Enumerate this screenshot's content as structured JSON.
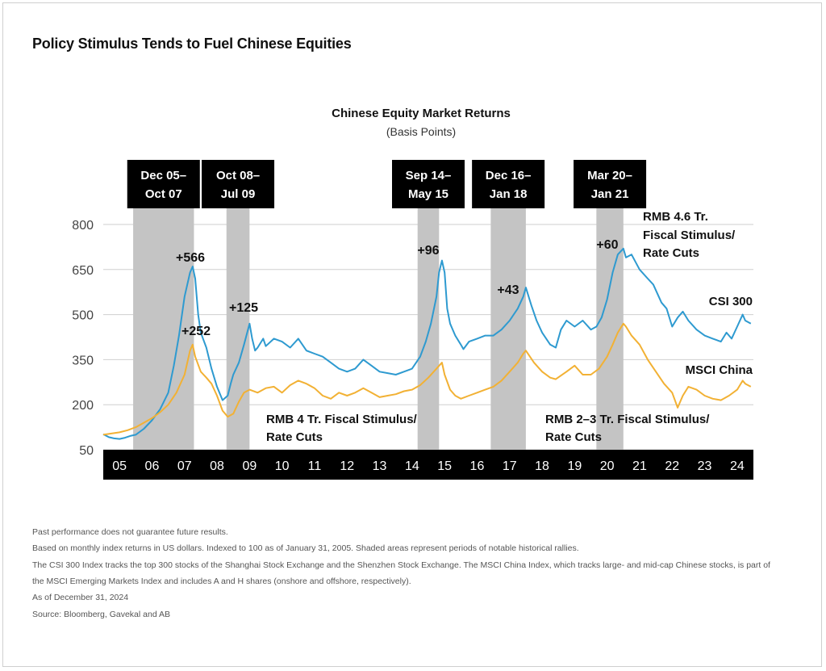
{
  "page_title": "Policy Stimulus Tends to Fuel Chinese Equities",
  "chart_data": {
    "type": "line",
    "title": "Chinese Equity Market Returns",
    "subtitle": "(Basis Points)",
    "xlabel": "",
    "ylabel": "",
    "xlim": [
      2005.0,
      2025.0
    ],
    "ylim": [
      50,
      800
    ],
    "y_ticks": [
      50,
      200,
      350,
      500,
      650,
      800
    ],
    "x_ticks": [
      {
        "label": "05",
        "x": 2005.5
      },
      {
        "label": "06",
        "x": 2006.5
      },
      {
        "label": "07",
        "x": 2007.5
      },
      {
        "label": "08",
        "x": 2008.5
      },
      {
        "label": "09",
        "x": 2009.5
      },
      {
        "label": "10",
        "x": 2010.5
      },
      {
        "label": "11",
        "x": 2011.5
      },
      {
        "label": "12",
        "x": 2012.5
      },
      {
        "label": "13",
        "x": 2013.5
      },
      {
        "label": "14",
        "x": 2014.5
      },
      {
        "label": "15",
        "x": 2015.5
      },
      {
        "label": "16",
        "x": 2016.5
      },
      {
        "label": "17",
        "x": 2017.5
      },
      {
        "label": "18",
        "x": 2018.5
      },
      {
        "label": "19",
        "x": 2019.5
      },
      {
        "label": "20",
        "x": 2020.5
      },
      {
        "label": "21",
        "x": 2021.5
      },
      {
        "label": "22",
        "x": 2022.5
      },
      {
        "label": "23",
        "x": 2023.5
      },
      {
        "label": "24",
        "x": 2024.5
      }
    ],
    "grid": "horizontal",
    "series": [
      {
        "name": "CSI 300",
        "color": "#2e9ad0",
        "x": [
          2005.0,
          2005.17,
          2005.33,
          2005.5,
          2005.67,
          2005.83,
          2006.0,
          2006.25,
          2006.5,
          2006.75,
          2007.0,
          2007.17,
          2007.33,
          2007.5,
          2007.67,
          2007.75,
          2007.83,
          2007.92,
          2008.0,
          2008.17,
          2008.33,
          2008.5,
          2008.67,
          2008.83,
          2008.92,
          2009.0,
          2009.17,
          2009.33,
          2009.5,
          2009.58,
          2009.67,
          2009.75,
          2009.92,
          2010.0,
          2010.25,
          2010.5,
          2010.75,
          2011.0,
          2011.25,
          2011.5,
          2011.75,
          2012.0,
          2012.25,
          2012.5,
          2012.75,
          2013.0,
          2013.25,
          2013.5,
          2013.75,
          2014.0,
          2014.25,
          2014.5,
          2014.75,
          2014.92,
          2015.08,
          2015.25,
          2015.33,
          2015.42,
          2015.5,
          2015.58,
          2015.67,
          2015.83,
          2016.0,
          2016.08,
          2016.25,
          2016.5,
          2016.75,
          2017.0,
          2017.25,
          2017.5,
          2017.75,
          2017.92,
          2018.0,
          2018.17,
          2018.33,
          2018.5,
          2018.75,
          2018.92,
          2019.08,
          2019.25,
          2019.5,
          2019.75,
          2020.0,
          2020.17,
          2020.33,
          2020.5,
          2020.67,
          2020.83,
          2021.0,
          2021.08,
          2021.25,
          2021.5,
          2021.75,
          2021.92,
          2022.17,
          2022.33,
          2022.5,
          2022.67,
          2022.83,
          2023.0,
          2023.25,
          2023.5,
          2023.75,
          2024.0,
          2024.17,
          2024.33,
          2024.5,
          2024.67,
          2024.75,
          2024.92
        ],
        "values": [
          102,
          92,
          88,
          86,
          90,
          96,
          100,
          120,
          148,
          185,
          240,
          330,
          430,
          560,
          640,
          660,
          620,
          500,
          440,
          390,
          320,
          260,
          215,
          230,
          270,
          300,
          340,
          400,
          470,
          420,
          380,
          390,
          420,
          395,
          420,
          410,
          390,
          420,
          380,
          370,
          360,
          340,
          320,
          310,
          320,
          350,
          330,
          310,
          305,
          300,
          310,
          320,
          360,
          410,
          470,
          560,
          640,
          680,
          640,
          520,
          470,
          430,
          400,
          385,
          410,
          420,
          430,
          430,
          450,
          480,
          520,
          560,
          590,
          530,
          480,
          440,
          400,
          390,
          450,
          480,
          460,
          480,
          450,
          460,
          490,
          550,
          640,
          700,
          720,
          690,
          700,
          650,
          620,
          600,
          540,
          520,
          460,
          490,
          510,
          480,
          450,
          430,
          420,
          410,
          440,
          420,
          460,
          500,
          480,
          470
        ]
      },
      {
        "name": "MSCI China",
        "color": "#f2b134",
        "x": [
          2005.0,
          2005.25,
          2005.5,
          2005.75,
          2006.0,
          2006.25,
          2006.5,
          2006.75,
          2007.0,
          2007.25,
          2007.5,
          2007.67,
          2007.75,
          2007.83,
          2008.0,
          2008.17,
          2008.33,
          2008.5,
          2008.67,
          2008.83,
          2009.0,
          2009.17,
          2009.33,
          2009.5,
          2009.75,
          2010.0,
          2010.25,
          2010.5,
          2010.75,
          2011.0,
          2011.25,
          2011.5,
          2011.75,
          2012.0,
          2012.25,
          2012.5,
          2012.75,
          2013.0,
          2013.25,
          2013.5,
          2013.75,
          2014.0,
          2014.25,
          2014.5,
          2014.75,
          2015.0,
          2015.25,
          2015.42,
          2015.5,
          2015.67,
          2015.83,
          2016.0,
          2016.25,
          2016.5,
          2016.75,
          2017.0,
          2017.25,
          2017.5,
          2017.75,
          2017.92,
          2018.0,
          2018.25,
          2018.5,
          2018.75,
          2018.92,
          2019.25,
          2019.5,
          2019.75,
          2020.0,
          2020.25,
          2020.5,
          2020.67,
          2020.83,
          2021.0,
          2021.08,
          2021.25,
          2021.5,
          2021.75,
          2022.0,
          2022.25,
          2022.5,
          2022.67,
          2022.83,
          2023.0,
          2023.25,
          2023.5,
          2023.75,
          2024.0,
          2024.25,
          2024.5,
          2024.67,
          2024.75,
          2024.92
        ],
        "values": [
          100,
          104,
          108,
          115,
          125,
          140,
          155,
          175,
          200,
          240,
          300,
          380,
          400,
          360,
          310,
          290,
          270,
          230,
          180,
          160,
          170,
          210,
          240,
          250,
          240,
          255,
          260,
          240,
          265,
          280,
          270,
          255,
          230,
          220,
          240,
          230,
          240,
          255,
          240,
          225,
          230,
          235,
          245,
          250,
          265,
          290,
          320,
          340,
          300,
          250,
          230,
          220,
          230,
          240,
          250,
          260,
          280,
          310,
          340,
          370,
          380,
          340,
          310,
          290,
          285,
          310,
          330,
          300,
          300,
          320,
          360,
          400,
          440,
          470,
          460,
          430,
          400,
          350,
          310,
          270,
          240,
          190,
          230,
          260,
          250,
          230,
          220,
          215,
          230,
          250,
          280,
          270,
          260
        ]
      }
    ],
    "shaded_periods": [
      {
        "label_line1": "Dec 05–",
        "label_line2": "Oct 07",
        "x0": 2005.92,
        "x1": 2007.79,
        "note": "+566",
        "note2": "+252"
      },
      {
        "label_line1": "Oct 08–",
        "label_line2": "Jul 09",
        "x0": 2008.79,
        "x1": 2009.5,
        "note": "+125"
      },
      {
        "label_line1": "Sep 14–",
        "label_line2": "May 15",
        "x0": 2014.67,
        "x1": 2015.33,
        "note": "+96"
      },
      {
        "label_line1": "Dec 16–",
        "label_line2": "Jan 18",
        "x0": 2016.92,
        "x1": 2018.0,
        "note": "+43"
      },
      {
        "label_line1": "Mar 20–",
        "label_line2": "Jan 21",
        "x0": 2020.17,
        "x1": 2021.0,
        "note": "+60"
      }
    ],
    "annotations": [
      {
        "id": "rmb4",
        "line1": "RMB 4 Tr. Fiscal Stimulus/",
        "line2": "Rate Cuts"
      },
      {
        "id": "rmb23",
        "line1": "RMB 2–3 Tr. Fiscal Stimulus/",
        "line2": "Rate Cuts"
      },
      {
        "id": "rmb46",
        "line1": "RMB 4.6 Tr.",
        "line2": "Fiscal Stimulus/",
        "line3": "Rate Cuts"
      }
    ],
    "series_labels": {
      "csi300": "CSI 300",
      "msci": "MSCI China"
    }
  },
  "footnotes": [
    "Past performance does not guarantee future results.",
    "Based on monthly index returns in US dollars. Indexed to 100 as of January 31, 2005. Shaded areas represent periods of notable historical rallies.",
    "The CSI 300 Index tracks the top 300 stocks of the Shanghai Stock Exchange and the Shenzhen Stock Exchange. The MSCI China Index, which tracks large- and mid-cap Chinese stocks, is part of",
    "the MSCI Emerging Markets Index and includes A and H shares (onshore and offshore, respectively).",
    "As of December 31, 2024",
    "Source: Bloomberg, Gavekal and AB"
  ]
}
